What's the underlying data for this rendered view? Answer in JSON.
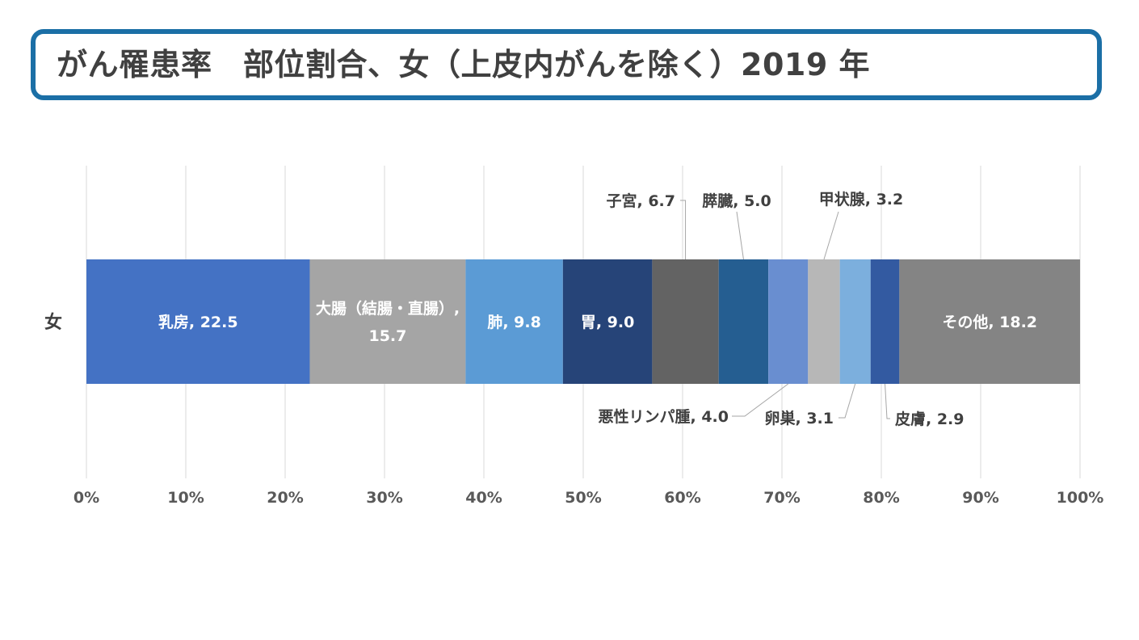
{
  "title": "がん罹患率　部位割合、女（上皮内がんを除く）2019 年",
  "chart_data": {
    "type": "bar",
    "orientation": "horizontal",
    "stacked": "100%",
    "title": "がん罹患率　部位割合、女（上皮内がんを除く）2019 年",
    "categories": [
      "女"
    ],
    "xlim": [
      0,
      100
    ],
    "ticks": [
      "0%",
      "10%",
      "20%",
      "30%",
      "40%",
      "50%",
      "60%",
      "70%",
      "80%",
      "90%",
      "100%"
    ],
    "grid": true,
    "series": [
      {
        "name": "乳房",
        "values": [
          22.5
        ],
        "color": "#4472c4",
        "label": "乳房, 22.5",
        "label_pos": "inside"
      },
      {
        "name": "大腸（結腸・直腸）",
        "values": [
          15.7
        ],
        "color": "#a5a5a5",
        "label": "大腸（結腸・直腸）,",
        "label2": "15.7",
        "label_pos": "inside"
      },
      {
        "name": "肺",
        "values": [
          9.8
        ],
        "color": "#5b9bd5",
        "label": "肺, 9.8",
        "label_pos": "inside"
      },
      {
        "name": "胃",
        "values": [
          9.0
        ],
        "color": "#264478",
        "label": "胃, 9.0",
        "label_pos": "inside"
      },
      {
        "name": "子宮",
        "values": [
          6.7
        ],
        "color": "#636363",
        "label": "子宮, 6.7",
        "label_pos": "above"
      },
      {
        "name": "膵臓",
        "values": [
          5.0
        ],
        "color": "#255e91",
        "label": "膵臓, 5.0",
        "label_pos": "above"
      },
      {
        "name": "悪性リンパ腫",
        "values": [
          4.0
        ],
        "color": "#698ed0",
        "label": "悪性リンパ腫, 4.0",
        "label_pos": "below"
      },
      {
        "name": "甲状腺",
        "values": [
          3.2
        ],
        "color": "#b7b7b7",
        "label": "甲状腺, 3.2",
        "label_pos": "above"
      },
      {
        "name": "卵巣",
        "values": [
          3.1
        ],
        "color": "#7cafdd",
        "label": "卵巣, 3.1",
        "label_pos": "below"
      },
      {
        "name": "皮膚",
        "values": [
          2.9
        ],
        "color": "#335aa1",
        "label": "皮膚, 2.9",
        "label_pos": "below"
      },
      {
        "name": "その他",
        "values": [
          18.2
        ],
        "color": "#848484",
        "label": "その他, 18.2",
        "label_pos": "inside"
      }
    ]
  }
}
